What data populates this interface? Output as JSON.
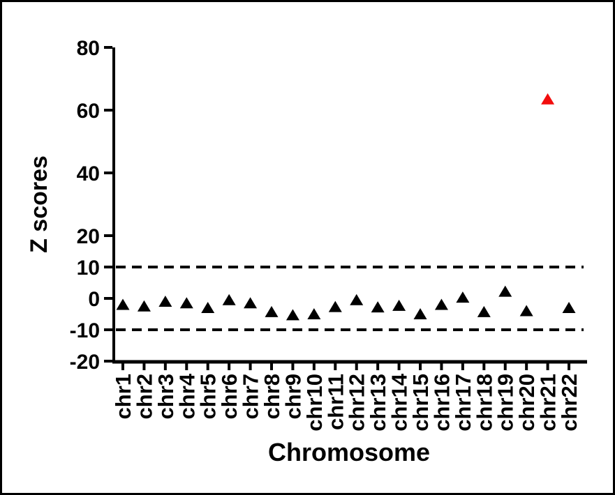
{
  "chart_data": {
    "type": "scatter",
    "marker": "triangle",
    "title": "",
    "xlabel": "Chromosome",
    "ylabel": "Z scores",
    "categories": [
      "chr1",
      "chr2",
      "chr3",
      "chr4",
      "chr5",
      "chr6",
      "chr7",
      "chr8",
      "chr9",
      "chr10",
      "chr11",
      "chr12",
      "chr13",
      "chr14",
      "chr15",
      "chr16",
      "chr17",
      "chr18",
      "chr19",
      "chr20",
      "chr21",
      "chr22"
    ],
    "values": [
      -2.0,
      -2.5,
      -1.0,
      -1.5,
      -3.0,
      -0.5,
      -1.5,
      -4.3,
      -5.3,
      -5.0,
      -2.7,
      -0.5,
      -2.8,
      -2.3,
      -5.0,
      -2.0,
      0.3,
      -4.3,
      2.2,
      -4.0,
      63.5,
      -3.0
    ],
    "ylim": [
      -20,
      80
    ],
    "yticks": [
      80,
      60,
      40,
      20,
      10,
      0,
      -10,
      -20
    ],
    "threshold_lines": [
      {
        "y": 10,
        "style": "dashed"
      },
      {
        "y": -10,
        "style": "dashed"
      }
    ],
    "highlight": {
      "category": "chr21",
      "value": 63.5,
      "color": "#f20d0d"
    },
    "marker_color": "#000000",
    "axis_color": "#000000",
    "grid": false,
    "legend": false
  }
}
